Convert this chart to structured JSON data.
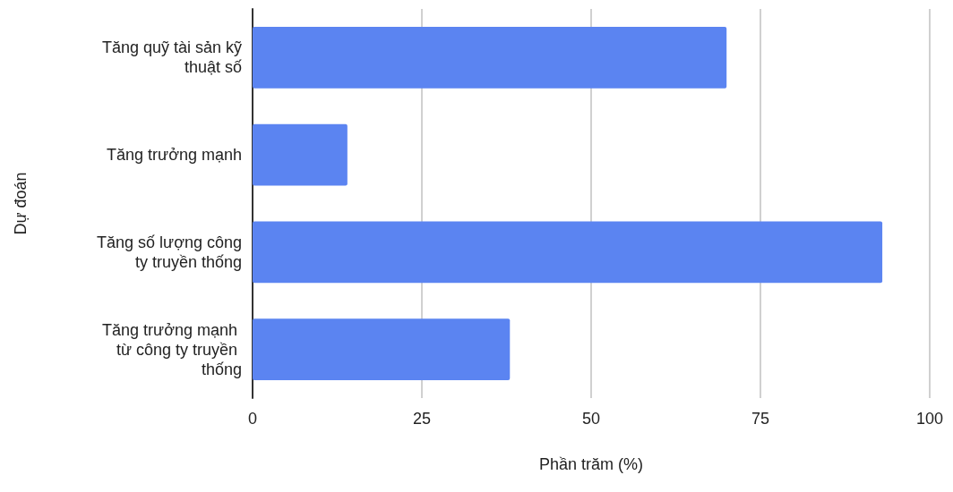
{
  "chart_data": {
    "type": "bar",
    "orientation": "horizontal",
    "xlabel": "Phần trăm (%)",
    "ylabel": "Dự đoán",
    "categories": [
      "Tăng quỹ tài sản kỹ thuật số",
      "Tăng trưởng mạnh",
      "Tăng số lượng công ty truyền thống",
      "Tăng trưởng mạnh từ công ty truyền thống"
    ],
    "values": [
      70,
      14,
      93,
      38
    ],
    "color": "#5b84f1",
    "xlim": [
      0,
      100
    ],
    "xticks": [
      0,
      25,
      50,
      75,
      100
    ],
    "grid": "x"
  }
}
